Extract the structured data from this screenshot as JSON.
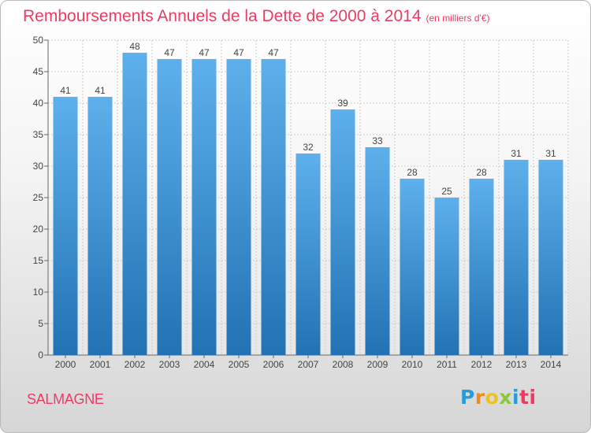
{
  "header": {
    "title": "Remboursements Annuels de la Dette de 2000 à 2014",
    "subtitle": "(en milliers d'€)"
  },
  "footer": {
    "town": "SALMAGNE",
    "logo": [
      "P",
      "r",
      "o",
      "x",
      "i",
      "ti"
    ]
  },
  "colors": {
    "title": "#ee3b62",
    "bar_light": "#5eb0ec",
    "bar_dark": "#2272b4",
    "grid": "#cccccc"
  },
  "chart_data": {
    "type": "bar",
    "title": "Remboursements Annuels de la Dette de 2000 à 2014",
    "xlabel": "",
    "ylabel": "",
    "categories": [
      "2000",
      "2001",
      "2002",
      "2003",
      "2004",
      "2005",
      "2006",
      "2007",
      "2008",
      "2009",
      "2010",
      "2011",
      "2012",
      "2013",
      "2014"
    ],
    "values": [
      41,
      41,
      48,
      47,
      47,
      47,
      47,
      32,
      39,
      33,
      28,
      25,
      28,
      31,
      31
    ],
    "ylim": [
      0,
      50
    ],
    "yticks": [
      0,
      5,
      10,
      15,
      20,
      25,
      30,
      35,
      40,
      45,
      50
    ],
    "grid": true,
    "legend": "none"
  }
}
